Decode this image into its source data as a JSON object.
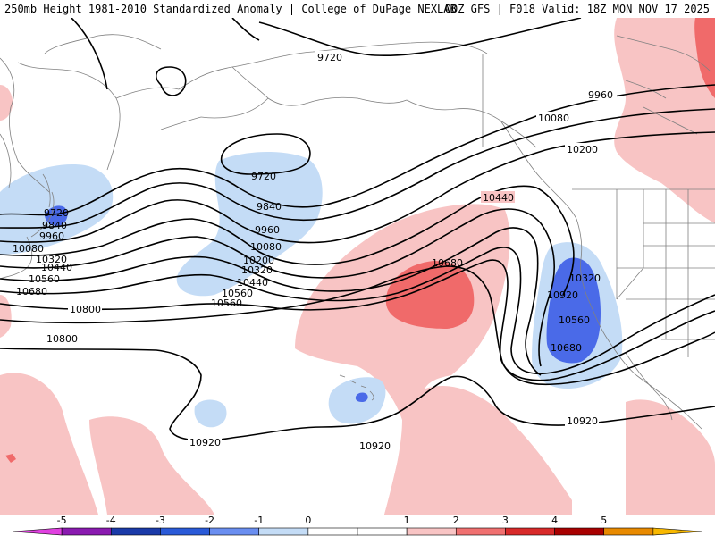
{
  "header": {
    "title_left": "250mb Height 1981-2010 Standardized Anomaly | College of DuPage NEXLAB",
    "title_right": "00Z GFS | F018 Valid: 18Z MON NOV 17 2025"
  },
  "contour_labels": [
    "9720",
    "9720",
    "9720",
    "9840",
    "9840",
    "9960",
    "9960",
    "9960",
    "10080",
    "10080",
    "10080",
    "10200",
    "10200",
    "10320",
    "10320",
    "10320",
    "10440",
    "10440",
    "10440",
    "10560",
    "10560",
    "10560",
    "10560",
    "10680",
    "10680",
    "10680",
    "10800",
    "10800",
    "10920",
    "10920",
    "10920",
    "10920"
  ],
  "colorbar": {
    "ticks": [
      "-5",
      "-4",
      "-3",
      "-2",
      "-1",
      "0",
      "1",
      "2",
      "3",
      "4",
      "5"
    ],
    "colors": [
      "#e040e0",
      "#8a1ab0",
      "#1a3aa8",
      "#2a5ad8",
      "#6a8ef0",
      "#c4dcf6",
      "#ffffff",
      "#ffffff",
      "#f8c4c4",
      "#f07070",
      "#d82a2a",
      "#a80000",
      "#e88a00",
      "#f8b800"
    ]
  },
  "anomaly_colors": {
    "light_blue": "#c4dcf6",
    "medium_blue": "#4a6ae8",
    "light_red": "#f8c4c4",
    "medium_red": "#f06a6a"
  }
}
